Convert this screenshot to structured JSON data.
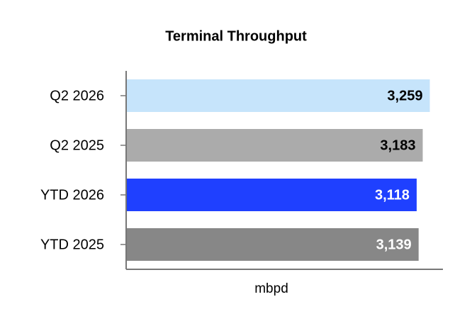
{
  "chart_data": {
    "type": "hbar",
    "title": "Terminal Throughput",
    "x_label": "mbpd",
    "categories": [
      "Q2 2026",
      "Q2 2025",
      "YTD 2026",
      "YTD 2025"
    ],
    "values": [
      3259,
      3183,
      3118,
      3139
    ],
    "value_labels": [
      "3,259",
      "3,183",
      "3,118",
      "3,139"
    ],
    "colors": [
      "#c6e4fb",
      "#ababab",
      "#1f40ff",
      "#878787"
    ],
    "label_colors": [
      "#000000",
      "#000000",
      "#ffffff",
      "#ffffff"
    ],
    "xlim": [
      0,
      3400
    ]
  }
}
